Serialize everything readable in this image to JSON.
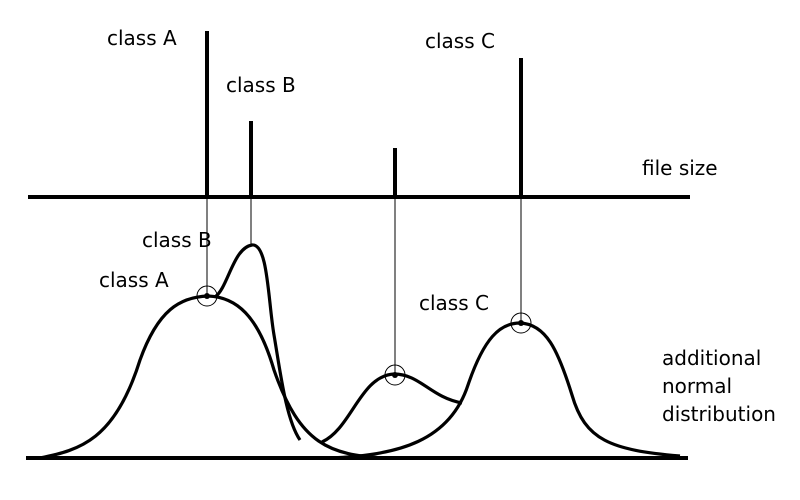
{
  "top_axis_label": "file  size",
  "top_labels": {
    "class_a": "class  A",
    "class_b": "class  B",
    "class_c": "class  C"
  },
  "bottom_labels": {
    "class_a": "class  A",
    "class_b": "class  B",
    "class_c": "class  C"
  },
  "side_note": [
    "additional",
    "normal",
    "distribution"
  ],
  "colors": {
    "ink": "#000000",
    "background": "#ffffff"
  }
}
